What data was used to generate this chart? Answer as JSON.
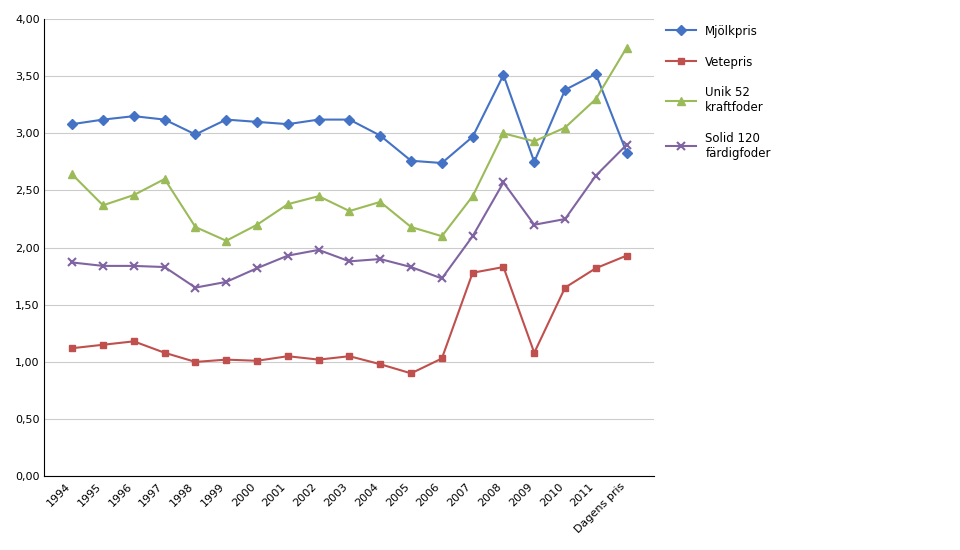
{
  "x_labels": [
    "1994",
    "1995",
    "1996",
    "1997",
    "1998",
    "1999",
    "2000",
    "2001",
    "2002",
    "2003",
    "2004",
    "2005",
    "2006",
    "2007",
    "2008",
    "2009",
    "2010",
    "2011",
    "Dagens pris"
  ],
  "mjolkpris": [
    3.08,
    3.12,
    3.15,
    3.12,
    2.99,
    3.12,
    3.1,
    3.08,
    3.12,
    3.12,
    2.98,
    2.76,
    2.74,
    2.97,
    3.51,
    2.75,
    3.38,
    3.52,
    2.83
  ],
  "vetepris": [
    1.12,
    1.15,
    1.18,
    1.08,
    1.0,
    1.02,
    1.01,
    1.05,
    1.02,
    1.05,
    0.98,
    0.9,
    1.03,
    1.78,
    1.83,
    1.08,
    1.65,
    1.82,
    1.93
  ],
  "kraftfoder": [
    2.64,
    2.37,
    2.46,
    2.6,
    2.18,
    2.06,
    2.2,
    2.38,
    2.45,
    2.32,
    2.4,
    2.18,
    2.1,
    2.45,
    3.0,
    2.93,
    3.05,
    3.3,
    3.75
  ],
  "fardigfoder": [
    1.87,
    1.84,
    1.84,
    1.83,
    1.65,
    1.7,
    1.82,
    1.93,
    1.98,
    1.88,
    1.9,
    1.83,
    1.73,
    2.1,
    2.57,
    2.2,
    2.25,
    2.63,
    2.9
  ],
  "mjolk_color": "#4472C4",
  "vete_color": "#C0504D",
  "kraft_color": "#9BBB59",
  "fardig_color": "#8064A2",
  "ylim": [
    0.0,
    4.0
  ],
  "yticks": [
    0.0,
    0.5,
    1.0,
    1.5,
    2.0,
    2.5,
    3.0,
    3.5,
    4.0
  ],
  "legend_mjolk": "Mjölkpris",
  "legend_vete": "Vetepris",
  "legend_kraft": "Unik 52\nkraftfoder",
  "legend_fardig": "Solid 120\nfärdigfoder",
  "chart_bg": "#FFFFFF",
  "plot_bg": "#FFFFFF"
}
